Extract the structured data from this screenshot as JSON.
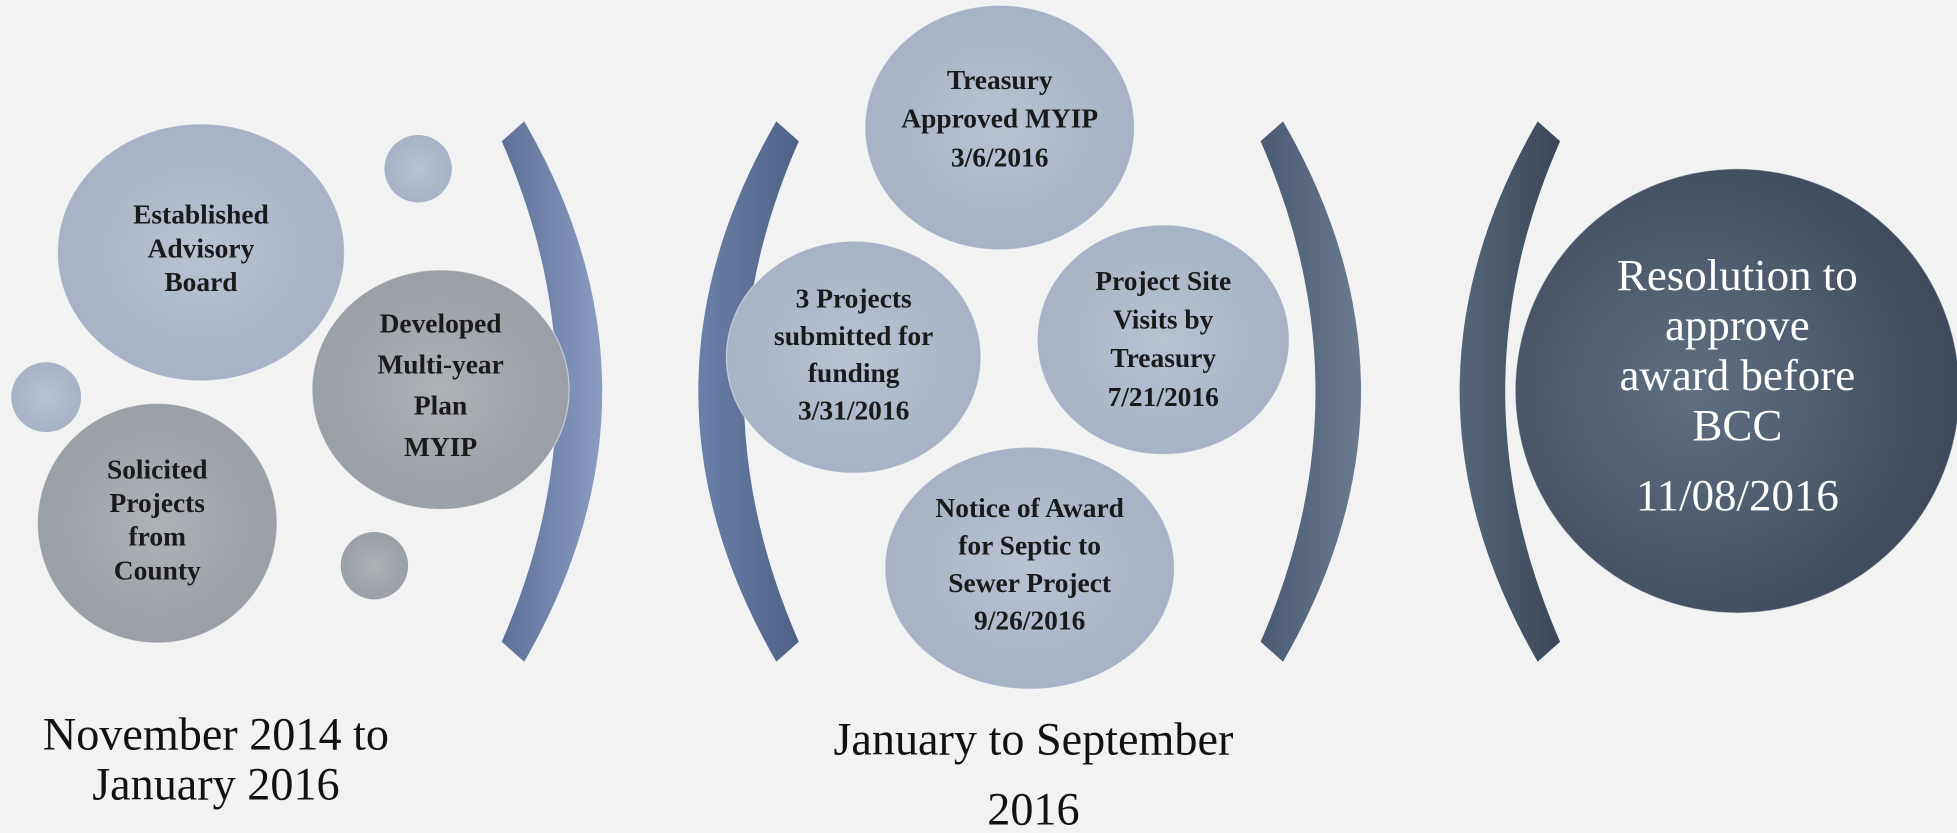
{
  "phases": [
    {
      "caption": [
        "November 2014 to",
        "January 2016"
      ],
      "bubbles": [
        {
          "lines": [
            "Established",
            "Advisory",
            "Board"
          ]
        },
        {
          "lines": [
            "Solicited",
            "Projects",
            "from",
            "County"
          ]
        },
        {
          "lines": [
            "Developed",
            "Multi-year",
            "Plan",
            "MYIP"
          ]
        }
      ]
    },
    {
      "caption": [
        "January to September",
        "2016"
      ],
      "bubbles": [
        {
          "lines": [
            "Treasury",
            "Approved MYIP",
            "3/6/2016"
          ]
        },
        {
          "lines": [
            "3 Projects",
            "submitted for",
            "funding",
            "3/31/2016"
          ]
        },
        {
          "lines": [
            "Project Site",
            "Visits by",
            "Treasury",
            "7/21/2016"
          ]
        },
        {
          "lines": [
            "Notice of Award",
            "for Septic to",
            "Sewer Project",
            "9/26/2016"
          ]
        }
      ]
    },
    {
      "caption": [],
      "bubbles": [
        {
          "lines": [
            "Resolution to",
            "approve",
            "award before",
            "BCC",
            "11/08/2016"
          ]
        }
      ]
    }
  ]
}
